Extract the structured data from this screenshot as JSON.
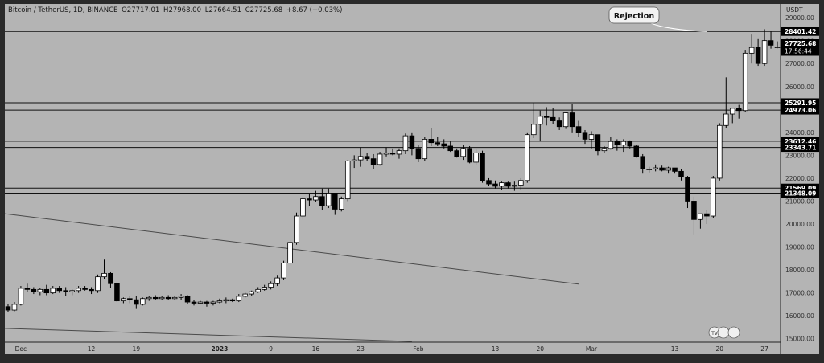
{
  "header": {
    "symbol": "Bitcoin / TetherUS, 1D, BINANCE",
    "open": "O27717.01",
    "high": "H27968.00",
    "low": "L27664.51",
    "close": "C27725.68",
    "change": "+8.67 (+0.03%)"
  },
  "currency_label": "USDT",
  "colors": {
    "background": "#b4b4b4",
    "axis_bg": "#b4b4b4",
    "frame": "#2a2a2a",
    "up_body": "#ffffff",
    "down_body": "#000000",
    "wick": "#000000",
    "level_label_bg": "#000000",
    "level_label_text": "#ffffff"
  },
  "chart_data": {
    "type": "candlestick",
    "y_axis": {
      "ticks": [
        15000,
        16000,
        17000,
        18000,
        19000,
        20000,
        21000,
        22000,
        23000,
        24000,
        25000,
        26000,
        27000,
        28000,
        29000
      ],
      "tick_labels": [
        "15000.00",
        "16000.00",
        "17000.00",
        "18000.00",
        "19000.00",
        "20000.00",
        "21000.00",
        "22000.00",
        "23000.00",
        "24000.00",
        "25000.00",
        "26000.00",
        "27000.00",
        "28000.00",
        "29000.00"
      ],
      "range": [
        14850,
        29600
      ]
    },
    "x_axis": {
      "labels": [
        {
          "text": "Dec",
          "index": 2
        },
        {
          "text": "12",
          "index": 13
        },
        {
          "text": "19",
          "index": 20
        },
        {
          "text": "2023",
          "index": 33
        },
        {
          "text": "9",
          "index": 41
        },
        {
          "text": "16",
          "index": 48
        },
        {
          "text": "23",
          "index": 55
        },
        {
          "text": "Feb",
          "index": 64
        },
        {
          "text": "13",
          "index": 76
        },
        {
          "text": "20",
          "index": 83
        },
        {
          "text": "Mar",
          "index": 91
        },
        {
          "text": "13",
          "index": 104
        },
        {
          "text": "20",
          "index": 111
        },
        {
          "text": "27",
          "index": 118
        }
      ],
      "slots": 121
    },
    "horizontal_levels": [
      {
        "value": 28401.42,
        "label": "28401.42"
      },
      {
        "value": 25291.95,
        "label": "25291.95"
      },
      {
        "value": 24973.06,
        "label": "24973.06"
      },
      {
        "value": 23612.46,
        "label": "23612.46"
      },
      {
        "value": 23343.71,
        "label": "23343.71"
      },
      {
        "value": 21569.09,
        "label": "21569.09"
      },
      {
        "value": 21348.09,
        "label": "21348.09"
      }
    ],
    "price_labels": [
      {
        "value": 27725.68,
        "label": "27725.68"
      },
      {
        "value": 27725.68,
        "label": "17:56:44",
        "subline": true
      }
    ],
    "trendlines": [
      {
        "from": {
          "index": 0,
          "value": 20450
        },
        "to": {
          "index": 89,
          "value": 17380
        }
      },
      {
        "from": {
          "index": 0,
          "value": 15450
        },
        "to": {
          "index": 63,
          "value": 14880
        }
      }
    ],
    "annotation": {
      "text": "Rejection",
      "target_index": 109,
      "target_value": 28400
    },
    "candles": [
      [
        16400,
        16500,
        16150,
        16250
      ],
      [
        16250,
        16600,
        16200,
        16500
      ],
      [
        16500,
        17300,
        16450,
        17200
      ],
      [
        17200,
        17400,
        17050,
        17150
      ],
      [
        17150,
        17250,
        16950,
        17050
      ],
      [
        17050,
        17200,
        16900,
        17150
      ],
      [
        17150,
        17350,
        16900,
        17000
      ],
      [
        17000,
        17300,
        16950,
        17200
      ],
      [
        17200,
        17300,
        17000,
        17100
      ],
      [
        17100,
        17250,
        16850,
        17050
      ],
      [
        17050,
        17150,
        16900,
        17100
      ],
      [
        17100,
        17300,
        17000,
        17200
      ],
      [
        17200,
        17300,
        17100,
        17150
      ],
      [
        17150,
        17250,
        16950,
        17100
      ],
      [
        17100,
        17800,
        17000,
        17700
      ],
      [
        17700,
        18450,
        17600,
        17850
      ],
      [
        17850,
        17900,
        17200,
        17400
      ],
      [
        17400,
        17450,
        16600,
        16650
      ],
      [
        16650,
        16800,
        16550,
        16750
      ],
      [
        16750,
        16850,
        16550,
        16700
      ],
      [
        16700,
        16850,
        16300,
        16500
      ],
      [
        16500,
        16800,
        16450,
        16750
      ],
      [
        16750,
        16850,
        16650,
        16800
      ],
      [
        16800,
        16900,
        16700,
        16750
      ],
      [
        16750,
        16850,
        16700,
        16800
      ],
      [
        16800,
        16900,
        16700,
        16750
      ],
      [
        16750,
        16850,
        16700,
        16800
      ],
      [
        16800,
        16950,
        16700,
        16850
      ],
      [
        16850,
        16900,
        16500,
        16600
      ],
      [
        16600,
        16700,
        16450,
        16550
      ],
      [
        16550,
        16650,
        16500,
        16600
      ],
      [
        16600,
        16650,
        16400,
        16550
      ],
      [
        16550,
        16650,
        16450,
        16600
      ],
      [
        16600,
        16750,
        16550,
        16650
      ],
      [
        16650,
        16800,
        16550,
        16700
      ],
      [
        16700,
        16750,
        16600,
        16650
      ],
      [
        16650,
        16950,
        16600,
        16850
      ],
      [
        16850,
        17000,
        16800,
        16950
      ],
      [
        16950,
        17100,
        16850,
        17050
      ],
      [
        17050,
        17250,
        17000,
        17150
      ],
      [
        17150,
        17350,
        17100,
        17250
      ],
      [
        17250,
        17500,
        17150,
        17400
      ],
      [
        17400,
        17750,
        17300,
        17650
      ],
      [
        17650,
        18400,
        17550,
        18300
      ],
      [
        18300,
        19300,
        18200,
        19200
      ],
      [
        19200,
        20500,
        19100,
        20350
      ],
      [
        20350,
        21200,
        20200,
        21100
      ],
      [
        21100,
        21300,
        20800,
        21050
      ],
      [
        21050,
        21450,
        20950,
        21200
      ],
      [
        21200,
        21550,
        20600,
        20800
      ],
      [
        20800,
        21550,
        20700,
        21350
      ],
      [
        21350,
        21300,
        20400,
        20650
      ],
      [
        20650,
        21200,
        20550,
        21100
      ],
      [
        21100,
        22800,
        21000,
        22750
      ],
      [
        22750,
        23000,
        22450,
        22800
      ],
      [
        22800,
        23350,
        22500,
        22950
      ],
      [
        22950,
        23100,
        22750,
        22850
      ],
      [
        22850,
        23050,
        22400,
        22600
      ],
      [
        22600,
        23150,
        22550,
        23050
      ],
      [
        23050,
        23350,
        22950,
        23100
      ],
      [
        23100,
        23300,
        23000,
        23050
      ],
      [
        23050,
        23300,
        22850,
        23200
      ],
      [
        23200,
        23950,
        23050,
        23850
      ],
      [
        23850,
        24000,
        23000,
        23300
      ],
      [
        23300,
        23450,
        22700,
        22850
      ],
      [
        22850,
        23800,
        22750,
        23700
      ],
      [
        23700,
        24200,
        23400,
        23550
      ],
      [
        23550,
        23800,
        23400,
        23500
      ],
      [
        23500,
        23700,
        23300,
        23400
      ],
      [
        23400,
        23600,
        23150,
        23200
      ],
      [
        23200,
        23300,
        22900,
        22950
      ],
      [
        22950,
        23450,
        22800,
        23300
      ],
      [
        23300,
        23400,
        22650,
        22700
      ],
      [
        22700,
        23250,
        22600,
        23100
      ],
      [
        23100,
        23200,
        21800,
        21900
      ],
      [
        21900,
        22000,
        21650,
        21750
      ],
      [
        21750,
        21900,
        21550,
        21650
      ],
      [
        21650,
        21850,
        21500,
        21800
      ],
      [
        21800,
        21850,
        21550,
        21650
      ],
      [
        21650,
        21850,
        21450,
        21700
      ],
      [
        21700,
        22000,
        21500,
        21900
      ],
      [
        21900,
        24000,
        21800,
        23900
      ],
      [
        23900,
        25300,
        23750,
        24350
      ],
      [
        24350,
        24950,
        23600,
        24700
      ],
      [
        24700,
        25100,
        24300,
        24650
      ],
      [
        24650,
        25050,
        24350,
        24500
      ],
      [
        24500,
        24650,
        24100,
        24250
      ],
      [
        24250,
        24900,
        24150,
        24850
      ],
      [
        24850,
        25250,
        24000,
        24250
      ],
      [
        24250,
        24500,
        23800,
        24000
      ],
      [
        24000,
        24100,
        23500,
        23700
      ],
      [
        23700,
        24050,
        23300,
        23900
      ],
      [
        23900,
        23900,
        23000,
        23200
      ],
      [
        23200,
        23400,
        23100,
        23300
      ],
      [
        23300,
        23800,
        23250,
        23600
      ],
      [
        23600,
        23700,
        23200,
        23450
      ],
      [
        23450,
        23700,
        23150,
        23600
      ],
      [
        23600,
        23650,
        23300,
        23400
      ],
      [
        23400,
        23450,
        22900,
        22950
      ],
      [
        22950,
        23050,
        22200,
        22400
      ],
      [
        22400,
        22500,
        22250,
        22400
      ],
      [
        22400,
        22600,
        22300,
        22450
      ],
      [
        22450,
        22550,
        22300,
        22350
      ],
      [
        22350,
        22500,
        22200,
        22450
      ],
      [
        22450,
        22450,
        22200,
        22300
      ],
      [
        22300,
        22400,
        21900,
        22050
      ],
      [
        22050,
        22100,
        20700,
        21000
      ],
      [
        21000,
        21200,
        19550,
        20200
      ],
      [
        20200,
        20400,
        19800,
        20450
      ],
      [
        20450,
        20600,
        20000,
        20350
      ],
      [
        20350,
        22100,
        20250,
        22000
      ],
      [
        22000,
        24400,
        21900,
        24300
      ],
      [
        24300,
        26400,
        24200,
        24800
      ],
      [
        24800,
        25000,
        24400,
        25050
      ],
      [
        25050,
        25200,
        24600,
        24950
      ],
      [
        24950,
        27600,
        24900,
        27450
      ],
      [
        27450,
        28300,
        27000,
        27700
      ],
      [
        27700,
        28100,
        26900,
        27000
      ],
      [
        27000,
        28500,
        26900,
        28000
      ],
      [
        28000,
        28400,
        27650,
        27800
      ],
      [
        27717.01,
        27968,
        27664.51,
        27725.68
      ]
    ]
  },
  "footer_badge": "TV"
}
